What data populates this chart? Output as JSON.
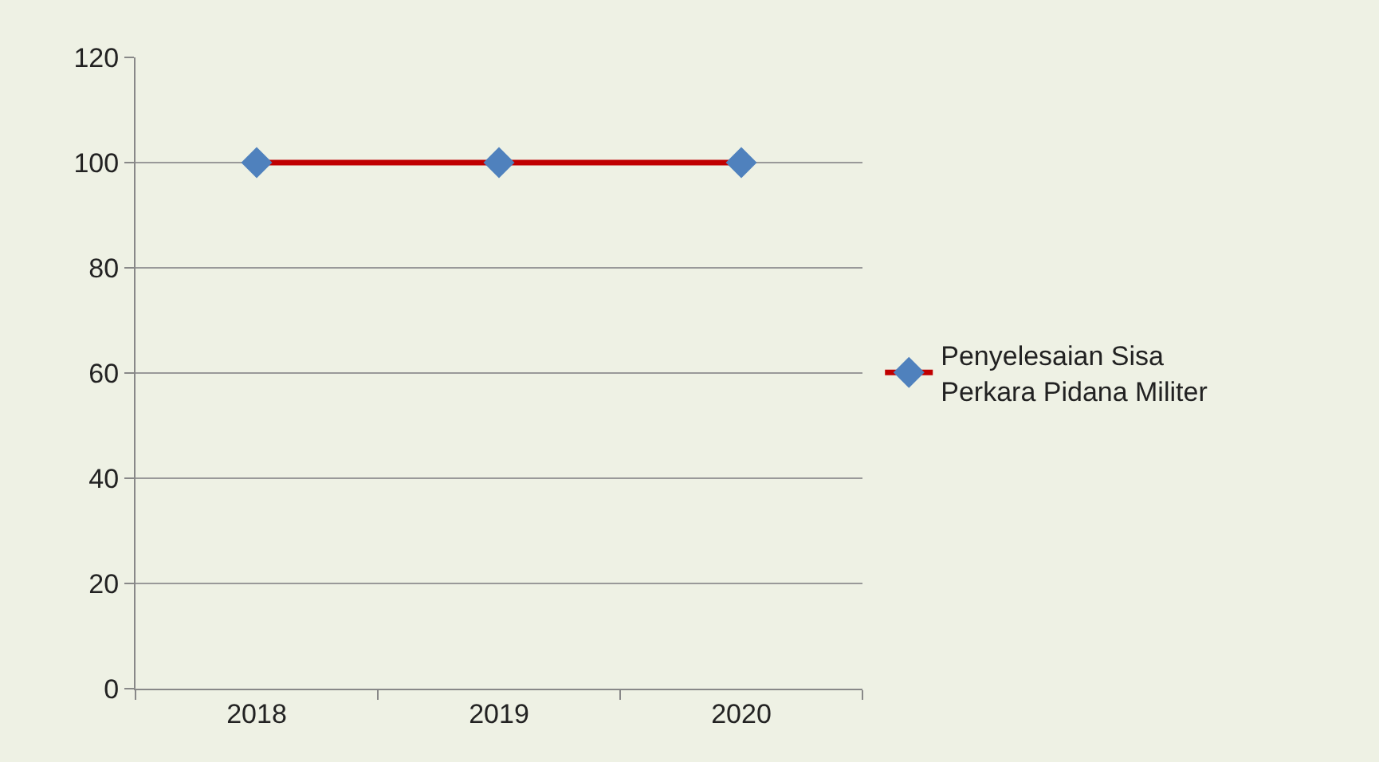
{
  "chart_data": {
    "type": "line",
    "categories": [
      "2018",
      "2019",
      "2020"
    ],
    "series": [
      {
        "name": "Penyelesaian Sisa\nPerkara Pidana Militer",
        "color": "#c00000",
        "colors": [
          "#4f81bd",
          "#4f81bd",
          "#4f81bd"
        ],
        "values": [
          100,
          100,
          100
        ]
      }
    ],
    "ylim": [
      0,
      120
    ],
    "yticks": [
      0,
      20,
      40,
      60,
      80,
      100,
      120
    ],
    "grid": "y",
    "legend": "right",
    "marker": "diamond",
    "line_style": "solid"
  }
}
